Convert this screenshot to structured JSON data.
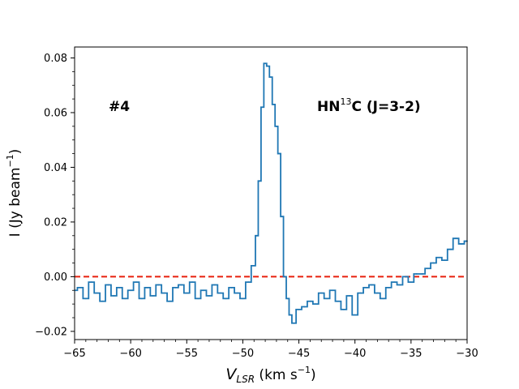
{
  "chart_data": {
    "type": "line",
    "title": "",
    "xlabel": {
      "main": "V",
      "sub": "LSR",
      "units_pre": " (km s",
      "units_sup": "−1",
      "units_post": ")"
    },
    "ylabel": {
      "pre": "I (Jy beam",
      "sup": "−1",
      "post": ")"
    },
    "xlim": [
      -65,
      -30
    ],
    "ylim": [
      -0.023,
      0.084
    ],
    "x_ticks": [
      -65,
      -60,
      -55,
      -50,
      -45,
      -40,
      -35,
      -30
    ],
    "x_tick_labels": [
      "−65",
      "−60",
      "−55",
      "−50",
      "−45",
      "−40",
      "−35",
      "−30"
    ],
    "y_ticks": [
      -0.02,
      0.0,
      0.02,
      0.04,
      0.06,
      0.08
    ],
    "y_tick_labels": [
      "−0.02",
      "0.00",
      "0.02",
      "0.04",
      "0.06",
      "0.08"
    ],
    "grid": false,
    "legend": "none",
    "annotations": {
      "source": "#4",
      "line": {
        "pre": "HN",
        "sup": "13",
        "post": "C (J=3-2)"
      }
    },
    "reference_line": {
      "y": 0.0,
      "style": "dashed",
      "color": "#e8200c"
    },
    "series": [
      {
        "color": "#1f77b4",
        "x": [
          -65.0,
          -64.5,
          -64.0,
          -63.5,
          -63.0,
          -62.5,
          -62.0,
          -61.5,
          -61.0,
          -60.5,
          -60.0,
          -59.5,
          -59.0,
          -58.5,
          -58.0,
          -57.5,
          -57.0,
          -56.5,
          -56.0,
          -55.5,
          -55.0,
          -54.5,
          -54.0,
          -53.5,
          -53.0,
          -52.5,
          -52.0,
          -51.5,
          -51.0,
          -50.5,
          -50.0,
          -49.5,
          -49.0,
          -48.75,
          -48.5,
          -48.25,
          -48.0,
          -47.75,
          -47.5,
          -47.25,
          -47.0,
          -46.75,
          -46.5,
          -46.25,
          -46.0,
          -45.75,
          -45.5,
          -45.0,
          -44.5,
          -44.0,
          -43.5,
          -43.0,
          -42.5,
          -42.0,
          -41.5,
          -41.0,
          -40.5,
          -40.0,
          -39.5,
          -39.0,
          -38.5,
          -38.0,
          -37.5,
          -37.0,
          -36.5,
          -36.0,
          -35.5,
          -35.0,
          -34.5,
          -34.0,
          -33.5,
          -33.0,
          -32.5,
          -32.0,
          -31.5,
          -31.0,
          -30.5,
          -30.0
        ],
        "y": [
          -0.005,
          -0.004,
          -0.008,
          -0.002,
          -0.006,
          -0.009,
          -0.003,
          -0.007,
          -0.004,
          -0.008,
          -0.005,
          -0.002,
          -0.008,
          -0.004,
          -0.007,
          -0.003,
          -0.006,
          -0.009,
          -0.004,
          -0.003,
          -0.006,
          -0.002,
          -0.008,
          -0.005,
          -0.007,
          -0.003,
          -0.006,
          -0.008,
          -0.004,
          -0.006,
          -0.008,
          -0.002,
          0.004,
          0.015,
          0.035,
          0.062,
          0.078,
          0.077,
          0.073,
          0.063,
          0.055,
          0.045,
          0.022,
          0.0,
          -0.008,
          -0.014,
          -0.017,
          -0.012,
          -0.011,
          -0.009,
          -0.01,
          -0.006,
          -0.008,
          -0.005,
          -0.009,
          -0.012,
          -0.007,
          -0.014,
          -0.006,
          -0.004,
          -0.003,
          -0.006,
          -0.008,
          -0.004,
          -0.002,
          -0.003,
          0.0,
          -0.002,
          0.001,
          0.001,
          0.003,
          0.005,
          0.007,
          0.006,
          0.01,
          0.014,
          0.012,
          0.013
        ]
      }
    ]
  }
}
